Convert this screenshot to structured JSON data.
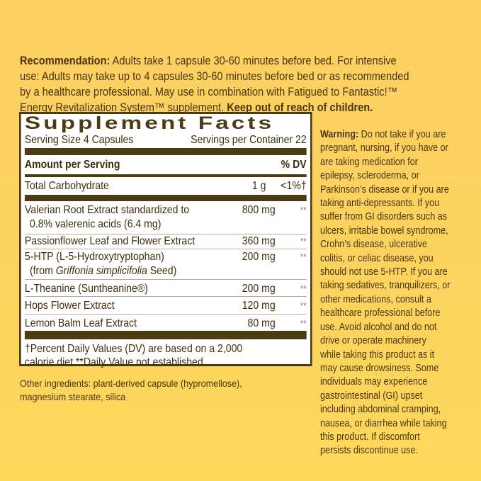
{
  "recommendation": {
    "label": "Recommendation:",
    "line1": "Adults take 1 capsule 30-60 minutes before bed. For intensive",
    "line2": "use: Adults may take up to 4 capsules 30-60 minutes before bed or as recommended",
    "line3": "by a healthcare professional. May use in combination with Fatigued to Fantastic!™",
    "line4": "Energy Revitalization System™ supplement.",
    "warning_bold": "Keep out of reach of children."
  },
  "facts": {
    "title": "Supplement Facts",
    "serving_size": "Serving Size 4 Capsules",
    "servings_per_container": "Servings per Container 22",
    "amount_header": "Amount per Serving",
    "dv_header": "% DV",
    "carb": {
      "name": "Total Carbohydrate",
      "amount": "1 g",
      "dv": "<1%†"
    },
    "ingredients": [
      {
        "name": "Valerian Root Extract standardized to",
        "sub": "0.8% valerenic acids (6.4 mg)",
        "amount": "800 mg",
        "dv": "**"
      },
      {
        "name": "Passionflower Leaf and Flower Extract",
        "amount": "360 mg",
        "dv": "**"
      },
      {
        "name": "5-HTP (L-5-Hydroxytryptophan)",
        "sub_pre": "(from ",
        "sub_italic": "Griffonia simplicifolia",
        "sub_post": " Seed)",
        "amount": "200 mg",
        "dv": "**"
      },
      {
        "name": "L-Theanine (Suntheanine®)",
        "amount": "200 mg",
        "dv": "**"
      },
      {
        "name": "Hops Flower Extract",
        "amount": "120 mg",
        "dv": "**"
      },
      {
        "name": "Lemon Balm Leaf Extract",
        "amount": "80 mg",
        "dv": "**"
      }
    ],
    "footnote_line1": "†Percent Daily Values (DV) are based on a 2,000",
    "footnote_line2": "calorie diet.**Daily Value not established."
  },
  "other_ingredients": {
    "line1": "Other ingredients: plant-derived capsule (hypromellose),",
    "line2": "magnesium stearate, silica"
  },
  "warning": {
    "label": "Warning:",
    "first": "Do not take if you are",
    "lines": [
      "pregnant, nursing, if you have or",
      "are taking medication for",
      "epilepsy, scleroderma, or",
      "Parkinson’s disease or if you are",
      "taking anti-depressants. If you",
      "suffer from GI disorders such as",
      "ulcers, irritable bowel syndrome,",
      "Crohn’s disease, ulcerative",
      "colitis, or celiac disease, you",
      "should not use 5-HTP. If you are",
      "taking sedatives, tranquilizers, or",
      "other medications, consult a",
      "healthcare professional before",
      "use. Avoid alcohol and do not",
      "drive or operate machinery",
      "while taking this product as it",
      "may cause drowsiness. Some",
      "individuals may experience",
      "gastrointestinal (GI) upset",
      "including abdominal cramping,",
      "nausea, or diarrhea while taking",
      "this product. If discomfort",
      "persists discontinue use."
    ]
  },
  "colors": {
    "background": "#fcd35e",
    "text": "#4a3612",
    "panel_border": "#4c3c14"
  }
}
